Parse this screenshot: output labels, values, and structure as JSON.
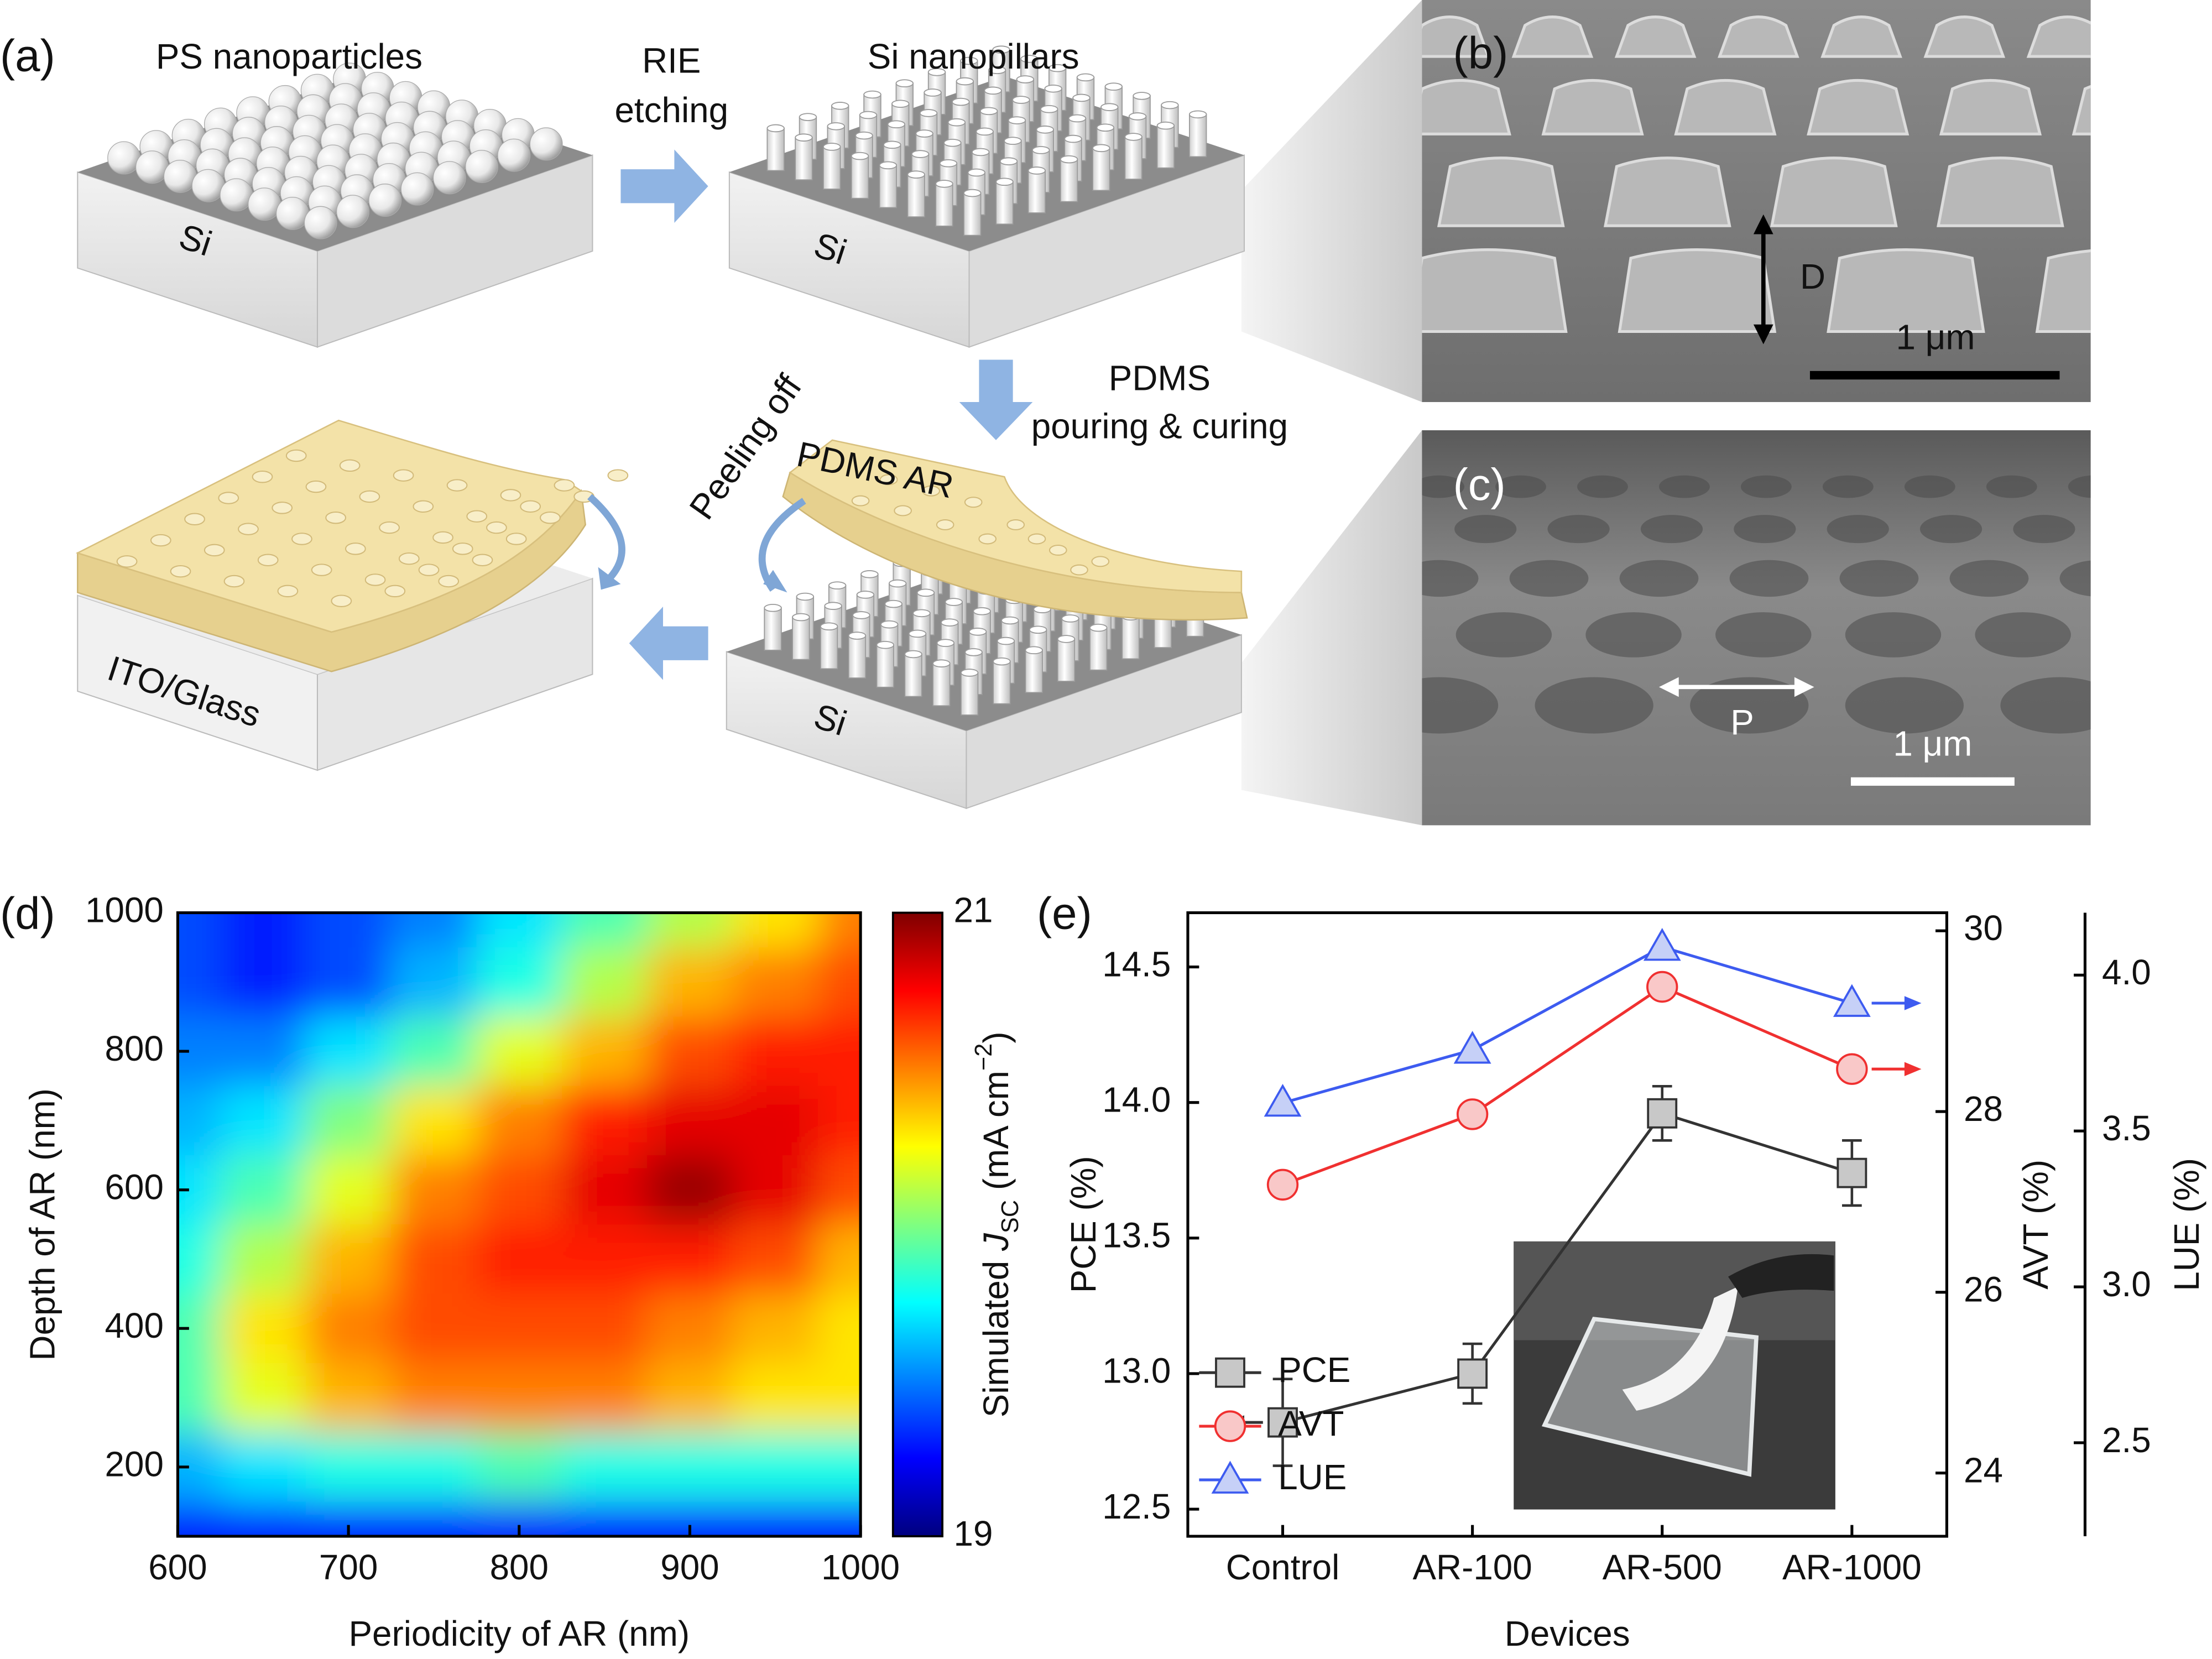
{
  "panels": {
    "a": {
      "label": "(a)",
      "ps": "PS nanoparticles",
      "rie": "RIE",
      "etching": "etching",
      "si_nanopillars": "Si nanopillars",
      "si": [
        "Si",
        "Si",
        "Si"
      ],
      "pdms": "PDMS",
      "pouring": "pouring & curing",
      "peeling": "Peeling off",
      "pdms_ar": "PDMS AR",
      "ito": "ITO/Glass"
    },
    "b": {
      "label": "(b)",
      "depth": "D",
      "scale": "1 μm"
    },
    "c": {
      "label": "(c)",
      "period": "P",
      "scale": "1 μm"
    }
  },
  "chart_data": [
    {
      "type": "heatmap",
      "label": "(d)",
      "xlabel": "Periodicity of AR (nm)",
      "ylabel": "Depth of AR (nm)",
      "x": [
        600,
        650,
        700,
        750,
        800,
        850,
        900,
        950,
        1000
      ],
      "y": [
        1000,
        900,
        800,
        700,
        600,
        500,
        400,
        300,
        200,
        100
      ],
      "z": [
        [
          19.4,
          19.3,
          19.4,
          19.5,
          19.7,
          19.9,
          20.1,
          20.3,
          20.5
        ],
        [
          19.4,
          19.3,
          19.4,
          19.6,
          19.8,
          20.1,
          20.4,
          20.5,
          20.6
        ],
        [
          19.5,
          19.5,
          19.7,
          19.9,
          20.2,
          20.4,
          20.6,
          20.7,
          20.7
        ],
        [
          19.6,
          19.7,
          20.0,
          20.3,
          20.5,
          20.7,
          20.8,
          20.8,
          20.7
        ],
        [
          19.7,
          19.9,
          20.2,
          20.5,
          20.6,
          20.8,
          20.95,
          20.8,
          20.6
        ],
        [
          19.8,
          20.1,
          20.4,
          20.6,
          20.7,
          20.7,
          20.7,
          20.6,
          20.4
        ],
        [
          19.9,
          20.3,
          20.5,
          20.6,
          20.6,
          20.6,
          20.5,
          20.4,
          20.3
        ],
        [
          19.9,
          20.2,
          20.4,
          20.5,
          20.5,
          20.5,
          20.4,
          20.3,
          20.3
        ],
        [
          19.6,
          19.7,
          19.8,
          19.8,
          19.9,
          19.8,
          19.8,
          19.8,
          19.8
        ],
        [
          19.3,
          19.3,
          19.3,
          19.3,
          19.3,
          19.3,
          19.3,
          19.3,
          19.3
        ]
      ],
      "xlim": [
        600,
        1000
      ],
      "ylim": [
        100,
        1000
      ],
      "xticks": [
        600,
        700,
        800,
        900,
        1000
      ],
      "yticks": [
        200,
        400,
        600,
        800,
        1000
      ],
      "zlim": [
        19,
        21
      ],
      "zticks": [
        19,
        21
      ],
      "colormap": "jet",
      "colorbar_label": {
        "text": "Simulated",
        "symbol": "J",
        "subscript": "SC",
        "unit": "(mA cm",
        "exponent": "−2",
        "end": ")"
      }
    },
    {
      "type": "line",
      "label": "(e)",
      "xlabel": "Devices",
      "categories": [
        "Control",
        "AR-100",
        "AR-500",
        "AR-1000"
      ],
      "ylabel": "PCE (%)",
      "ylim": [
        12.4,
        14.7
      ],
      "yticks": [
        12.5,
        {
          "value": 13,
          "label": "13.0"
        },
        13.5,
        {
          "value": 14,
          "label": "14.0"
        },
        14.5
      ],
      "y2label": "AVT (%)",
      "y2lim": [
        23.3,
        30.2
      ],
      "y2ticks": [
        24,
        26,
        28,
        30
      ],
      "y3label": "LUE (%)",
      "y3lim": [
        2.2,
        4.2
      ],
      "y3ticks": [
        2.5,
        {
          "value": 3,
          "label": "3.0"
        },
        3.5,
        {
          "value": 4,
          "label": "4.0"
        }
      ],
      "legend": "lower left",
      "series": [
        {
          "name": "PCE",
          "color": "#333333",
          "fill": "#c8c8c8",
          "marker": "square",
          "values": [
            12.82,
            13.0,
            13.96,
            13.74
          ],
          "errors": [
            0.16,
            0.11,
            0.1,
            0.12
          ]
        },
        {
          "name": "AVT",
          "color": "#f03030",
          "fill": "#f9c8c8",
          "marker": "circle",
          "axis": "y2",
          "values": [
            27.19,
            27.97,
            29.38,
            28.47
          ]
        },
        {
          "name": "LUE",
          "color": "#3d5bf0",
          "fill": "#c6d0f7",
          "marker": "triangle",
          "axis": "y3",
          "values": [
            3.59,
            3.76,
            4.09,
            3.91
          ]
        }
      ]
    }
  ]
}
